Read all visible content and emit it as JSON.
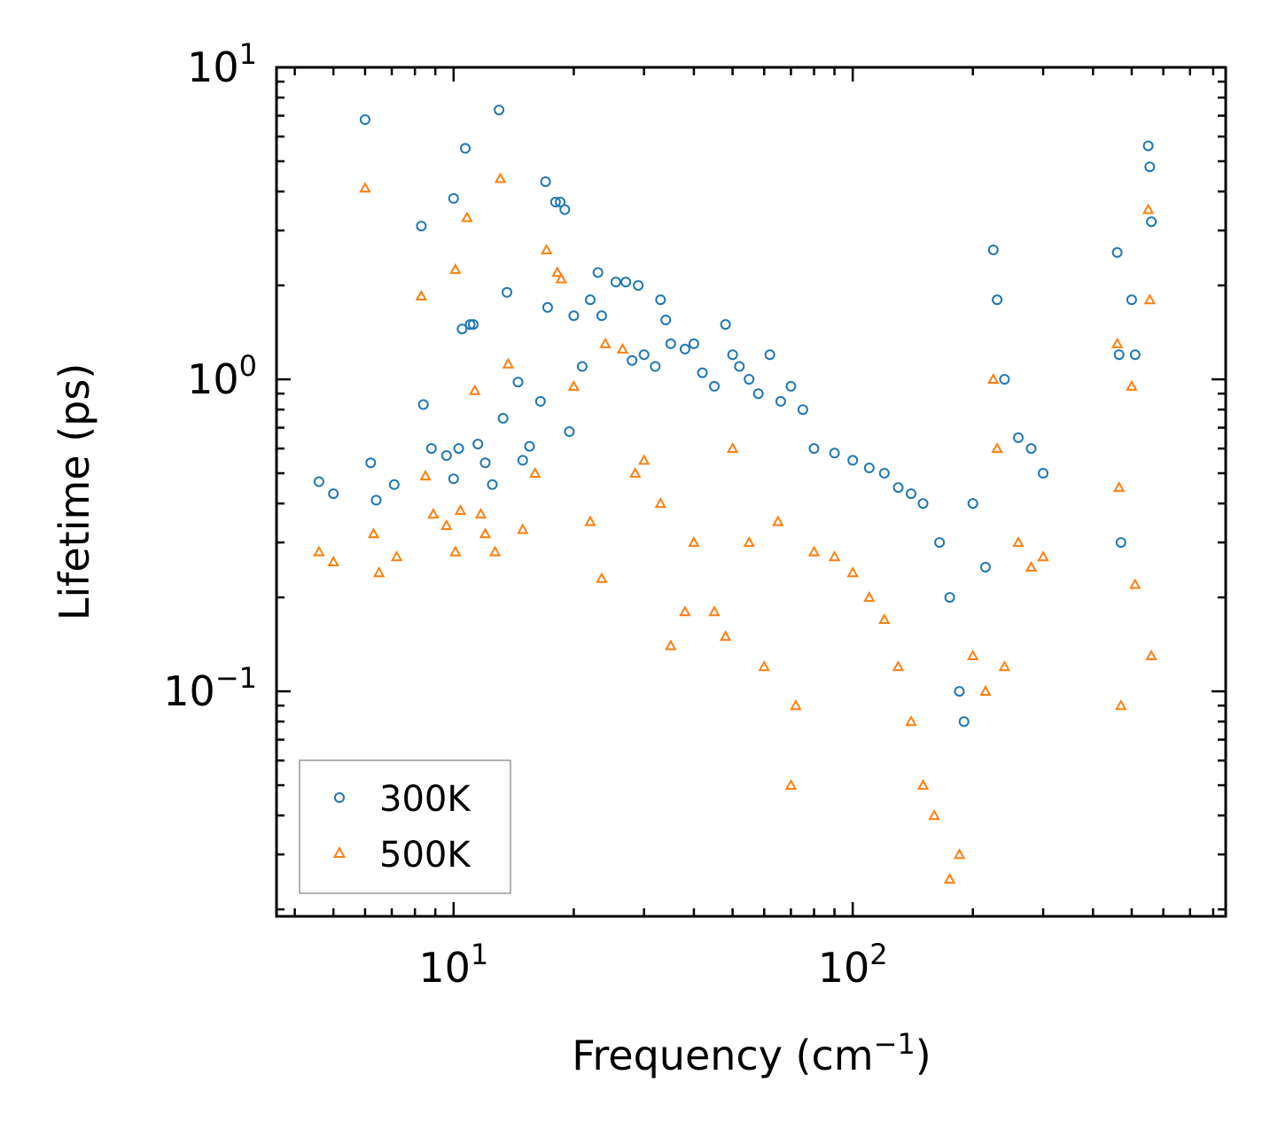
{
  "chart_data": {
    "type": "scatter",
    "title": "",
    "xlabel": "Frequency (cm",
    "xlabel_sup": "−1",
    "xlabel_close": ")",
    "ylabel": "Lifetime (ps)",
    "xscale": "log",
    "yscale": "log",
    "xlim": [
      3.6,
      860
    ],
    "ylim": [
      0.019,
      10
    ],
    "x_ticks": [
      {
        "value": 10,
        "base": "10",
        "exp": "1"
      },
      {
        "value": 100,
        "base": "10",
        "exp": "2"
      }
    ],
    "y_ticks": [
      {
        "value": 0.1,
        "base": "10",
        "exp": "−1"
      },
      {
        "value": 1,
        "base": "10",
        "exp": "0"
      },
      {
        "value": 10,
        "base": "10",
        "exp": "1"
      }
    ],
    "legend_position": "bottom-left",
    "series": [
      {
        "name": "300K",
        "marker": "circle",
        "color": "#1f77b4",
        "points": [
          [
            4.6,
            0.47
          ],
          [
            5.0,
            0.43
          ],
          [
            6.0,
            6.8
          ],
          [
            6.2,
            0.54
          ],
          [
            6.4,
            0.41
          ],
          [
            7.1,
            0.46
          ],
          [
            8.3,
            3.1
          ],
          [
            8.4,
            0.83
          ],
          [
            8.8,
            0.6
          ],
          [
            9.6,
            0.57
          ],
          [
            10.0,
            3.8
          ],
          [
            10.0,
            0.48
          ],
          [
            10.3,
            0.6
          ],
          [
            10.5,
            1.45
          ],
          [
            10.7,
            5.5
          ],
          [
            11.0,
            1.5
          ],
          [
            11.2,
            1.5
          ],
          [
            11.5,
            0.62
          ],
          [
            12.0,
            0.54
          ],
          [
            12.5,
            0.46
          ],
          [
            13.0,
            7.3
          ],
          [
            13.3,
            0.75
          ],
          [
            13.6,
            1.9
          ],
          [
            14.5,
            0.98
          ],
          [
            14.9,
            0.55
          ],
          [
            15.5,
            0.61
          ],
          [
            16.5,
            0.85
          ],
          [
            17.0,
            4.3
          ],
          [
            17.2,
            1.7
          ],
          [
            18.0,
            3.7
          ],
          [
            18.5,
            3.7
          ],
          [
            19.0,
            3.5
          ],
          [
            19.5,
            0.68
          ],
          [
            20.0,
            1.6
          ],
          [
            21.0,
            1.1
          ],
          [
            22.0,
            1.8
          ],
          [
            23.0,
            2.2
          ],
          [
            23.5,
            1.6
          ],
          [
            25.5,
            2.05
          ],
          [
            27.0,
            2.05
          ],
          [
            28.0,
            1.15
          ],
          [
            29.0,
            2.0
          ],
          [
            30.0,
            1.2
          ],
          [
            32.0,
            1.1
          ],
          [
            33.0,
            1.8
          ],
          [
            34.0,
            1.55
          ],
          [
            35.0,
            1.3
          ],
          [
            38.0,
            1.25
          ],
          [
            40.0,
            1.3
          ],
          [
            42.0,
            1.05
          ],
          [
            45.0,
            0.95
          ],
          [
            48.0,
            1.5
          ],
          [
            50.0,
            1.2
          ],
          [
            52.0,
            1.1
          ],
          [
            55.0,
            1.0
          ],
          [
            58.0,
            0.9
          ],
          [
            62.0,
            1.2
          ],
          [
            66.0,
            0.85
          ],
          [
            70.0,
            0.95
          ],
          [
            75.0,
            0.8
          ],
          [
            80.0,
            0.6
          ],
          [
            90.0,
            0.58
          ],
          [
            100.0,
            0.55
          ],
          [
            110.0,
            0.52
          ],
          [
            120.0,
            0.5
          ],
          [
            130.0,
            0.45
          ],
          [
            140.0,
            0.43
          ],
          [
            150.0,
            0.4
          ],
          [
            165.0,
            0.3
          ],
          [
            175.0,
            0.2
          ],
          [
            185.0,
            0.1
          ],
          [
            190.0,
            0.08
          ],
          [
            200.0,
            0.4
          ],
          [
            215.0,
            0.25
          ],
          [
            225.0,
            2.6
          ],
          [
            230.0,
            1.8
          ],
          [
            240.0,
            1.0
          ],
          [
            260.0,
            0.65
          ],
          [
            280.0,
            0.6
          ],
          [
            300.0,
            0.5
          ],
          [
            460.0,
            2.55
          ],
          [
            465.0,
            1.2
          ],
          [
            470.0,
            0.3
          ],
          [
            500.0,
            1.8
          ],
          [
            510.0,
            1.2
          ],
          [
            550.0,
            5.6
          ],
          [
            555.0,
            4.8
          ],
          [
            560.0,
            3.2
          ]
        ]
      },
      {
        "name": "500K",
        "marker": "triangle",
        "color": "#ff7f0e",
        "points": [
          [
            4.6,
            0.28
          ],
          [
            5.0,
            0.26
          ],
          [
            6.0,
            4.1
          ],
          [
            6.3,
            0.32
          ],
          [
            6.5,
            0.24
          ],
          [
            7.2,
            0.27
          ],
          [
            8.3,
            1.85
          ],
          [
            8.5,
            0.49
          ],
          [
            8.9,
            0.37
          ],
          [
            9.6,
            0.34
          ],
          [
            10.1,
            2.25
          ],
          [
            10.1,
            0.28
          ],
          [
            10.4,
            0.38
          ],
          [
            10.8,
            3.3
          ],
          [
            11.3,
            0.92
          ],
          [
            11.7,
            0.37
          ],
          [
            12.0,
            0.32
          ],
          [
            12.7,
            0.28
          ],
          [
            13.1,
            4.4
          ],
          [
            13.7,
            1.12
          ],
          [
            14.9,
            0.33
          ],
          [
            16.0,
            0.5
          ],
          [
            17.1,
            2.6
          ],
          [
            18.2,
            2.2
          ],
          [
            18.6,
            2.1
          ],
          [
            20.0,
            0.95
          ],
          [
            22.0,
            0.35
          ],
          [
            23.5,
            0.23
          ],
          [
            24.0,
            1.3
          ],
          [
            26.5,
            1.25
          ],
          [
            28.5,
            0.5
          ],
          [
            30.0,
            0.55
          ],
          [
            33.0,
            0.4
          ],
          [
            35.0,
            0.14
          ],
          [
            38.0,
            0.18
          ],
          [
            40.0,
            0.3
          ],
          [
            45.0,
            0.18
          ],
          [
            48.0,
            0.15
          ],
          [
            50.0,
            0.6
          ],
          [
            55.0,
            0.3
          ],
          [
            60.0,
            0.12
          ],
          [
            65.0,
            0.35
          ],
          [
            70.0,
            0.05
          ],
          [
            72.0,
            0.09
          ],
          [
            80.0,
            0.28
          ],
          [
            90.0,
            0.27
          ],
          [
            100.0,
            0.24
          ],
          [
            110.0,
            0.2
          ],
          [
            120.0,
            0.17
          ],
          [
            130.0,
            0.12
          ],
          [
            140.0,
            0.08
          ],
          [
            150.0,
            0.05
          ],
          [
            160.0,
            0.04
          ],
          [
            175.0,
            0.025
          ],
          [
            185.0,
            0.03
          ],
          [
            200.0,
            0.13
          ],
          [
            215.0,
            0.1
          ],
          [
            225.0,
            1.0
          ],
          [
            230.0,
            0.6
          ],
          [
            240.0,
            0.12
          ],
          [
            260.0,
            0.3
          ],
          [
            280.0,
            0.25
          ],
          [
            300.0,
            0.27
          ],
          [
            460.0,
            1.3
          ],
          [
            465.0,
            0.45
          ],
          [
            470.0,
            0.09
          ],
          [
            500.0,
            0.95
          ],
          [
            510.0,
            0.22
          ],
          [
            550.0,
            3.5
          ],
          [
            555.0,
            1.8
          ],
          [
            560.0,
            0.13
          ]
        ]
      }
    ]
  }
}
